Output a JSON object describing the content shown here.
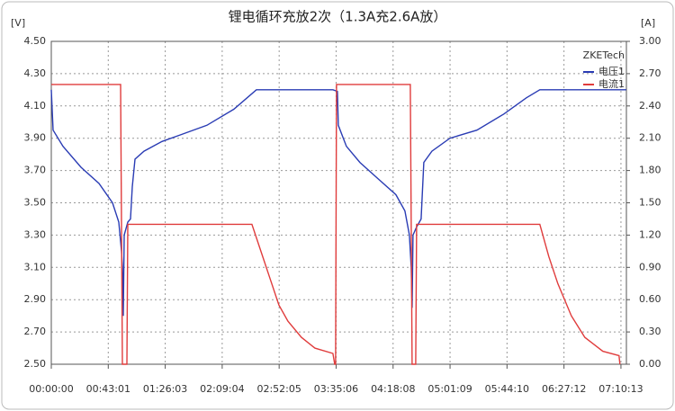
{
  "chart_data": {
    "type": "line",
    "title": "锂电循环充放2次（1.3A充2.6A放）",
    "y_label": "[V]",
    "y2_label": "[A]",
    "legend_title": "ZKETech",
    "grid": true,
    "legend": "top-right",
    "xlim": [
      0,
      26060
    ],
    "xticks": [
      {
        "value": 0,
        "label": "00:00:00"
      },
      {
        "value": 2581,
        "label": "00:43:01"
      },
      {
        "value": 5163,
        "label": "01:26:03"
      },
      {
        "value": 7744,
        "label": "02:09:04"
      },
      {
        "value": 10325,
        "label": "02:52:05"
      },
      {
        "value": 12906,
        "label": "03:35:06"
      },
      {
        "value": 15488,
        "label": "04:18:08"
      },
      {
        "value": 18069,
        "label": "05:01:09"
      },
      {
        "value": 20650,
        "label": "05:44:10"
      },
      {
        "value": 23232,
        "label": "06:27:12"
      },
      {
        "value": 25813,
        "label": "07:10:13"
      }
    ],
    "ylim": [
      2.5,
      4.5
    ],
    "yticks": [
      {
        "value": 2.5,
        "label": "2.50"
      },
      {
        "value": 2.7,
        "label": "2.70"
      },
      {
        "value": 2.9,
        "label": "2.90"
      },
      {
        "value": 3.1,
        "label": "3.10"
      },
      {
        "value": 3.3,
        "label": "3.30"
      },
      {
        "value": 3.5,
        "label": "3.50"
      },
      {
        "value": 3.7,
        "label": "3.70"
      },
      {
        "value": 3.9,
        "label": "3.90"
      },
      {
        "value": 4.1,
        "label": "4.10"
      },
      {
        "value": 4.3,
        "label": "4.30"
      },
      {
        "value": 4.5,
        "label": "4.50"
      }
    ],
    "y2lim": [
      0,
      3
    ],
    "y2ticks": [
      {
        "value": 0,
        "label": "0.00"
      },
      {
        "value": 0.3,
        "label": "0.30"
      },
      {
        "value": 0.6,
        "label": "0.60"
      },
      {
        "value": 0.9,
        "label": "0.90"
      },
      {
        "value": 1.2,
        "label": "1.20"
      },
      {
        "value": 1.5,
        "label": "1.50"
      },
      {
        "value": 1.8,
        "label": "1.80"
      },
      {
        "value": 2.1,
        "label": "2.10"
      },
      {
        "value": 2.4,
        "label": "2.40"
      },
      {
        "value": 2.7,
        "label": "2.70"
      },
      {
        "value": 3,
        "label": "3.00"
      }
    ],
    "series": [
      {
        "name": "电压1",
        "color": "#2a3cb4",
        "x": [
          0,
          82,
          530,
          1345,
          2161,
          2772,
          3058,
          3180,
          3221,
          3262,
          3302,
          3465,
          3588,
          3669,
          3792,
          4199,
          5015,
          5830,
          7053,
          8276,
          9296,
          12761,
          12965,
          13006,
          13373,
          13984,
          14800,
          15615,
          16023,
          16226,
          16308,
          16349,
          16390,
          16553,
          16757,
          16879,
          17246,
          18061,
          19284,
          20507,
          21526,
          22138,
          26052
        ],
        "values": [
          4.2,
          3.95,
          3.85,
          3.72,
          3.62,
          3.5,
          3.38,
          3.2,
          3.1,
          2.8,
          3.3,
          3.38,
          3.4,
          3.6,
          3.77,
          3.82,
          3.88,
          3.92,
          3.98,
          4.08,
          4.2,
          4.2,
          4.19,
          3.98,
          3.85,
          3.75,
          3.65,
          3.55,
          3.45,
          3.3,
          3.1,
          2.85,
          3.3,
          3.35,
          3.4,
          3.75,
          3.82,
          3.9,
          3.95,
          4.05,
          4.15,
          4.2,
          4.2
        ]
      },
      {
        "name": "电流1",
        "color": "#e03c3c",
        "axis": "y2",
        "x": [
          0,
          3139,
          3221,
          3425,
          3465,
          9092,
          9499,
          9907,
          10315,
          10722,
          11334,
          11946,
          12761,
          12843,
          12884,
          12924,
          16267,
          16349,
          16512,
          16553,
          22138,
          22546,
          22953,
          23565,
          24177,
          24993,
          25727,
          25767
        ],
        "values": [
          2.6,
          2.6,
          0,
          0,
          1.3,
          1.3,
          1.05,
          0.8,
          0.55,
          0.4,
          0.25,
          0.15,
          0.1,
          0,
          0,
          2.6,
          2.6,
          0,
          0,
          1.3,
          1.3,
          1.0,
          0.75,
          0.45,
          0.25,
          0.12,
          0.08,
          0
        ]
      }
    ]
  }
}
